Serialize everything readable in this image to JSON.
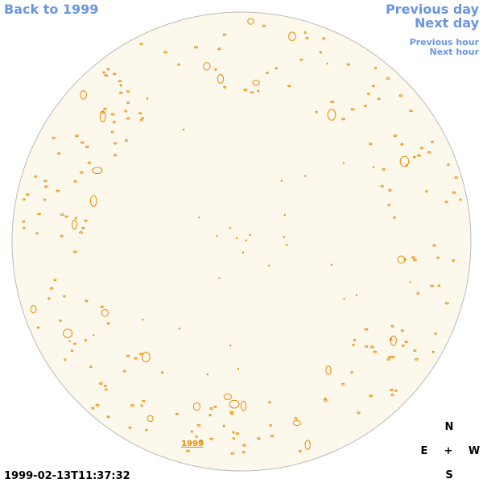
{
  "navigation": {
    "back": "Back to 1999",
    "previous_day": "Previous day",
    "next_day": "Next day",
    "previous_hour": "Previous hour",
    "next_hour": "Next hour"
  },
  "disk_label": "1999",
  "timestamp": "1999-02-13T11:37:32",
  "compass": {
    "north": "N",
    "east": "E",
    "center": "+",
    "west": "W",
    "south": "S"
  }
}
